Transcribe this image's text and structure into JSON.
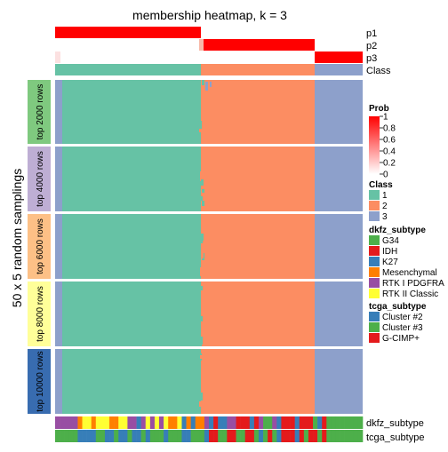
{
  "chart_data": {
    "type": "heatmap",
    "title": "membership heatmap, k = 3",
    "ylabel": "50 x 5 random samplings",
    "column_groups": [
      {
        "class": "1",
        "fraction": 0.455
      },
      {
        "class": "2",
        "fraction": 0.37
      },
      {
        "class": "3",
        "fraction": 0.12
      }
    ],
    "top_annotations": [
      {
        "label": "p1",
        "values_by_group": [
          1.0,
          0.0,
          0.0
        ]
      },
      {
        "label": "p2",
        "values_by_group": [
          0.0,
          1.0,
          0.0
        ]
      },
      {
        "label": "p3",
        "values_by_group": [
          0.0,
          0.0,
          1.0
        ]
      },
      {
        "label": "Class",
        "values_by_group": [
          "1",
          "2",
          "3"
        ]
      }
    ],
    "row_slices": [
      {
        "label": "top 2000 rows",
        "color": "#7FC97F"
      },
      {
        "label": "top 4000 rows",
        "color": "#BEAED4"
      },
      {
        "label": "top 6000 rows",
        "color": "#FDC086"
      },
      {
        "label": "top 8000 rows",
        "color": "#FFFF99"
      },
      {
        "label": "top 10000 rows",
        "color": "#386CB0"
      }
    ],
    "bottom_annotations": [
      {
        "label": "dkfz_subtype"
      },
      {
        "label": "tcga_subtype"
      }
    ]
  },
  "legends": {
    "prob": {
      "title": "Prob",
      "ticks": [
        "1",
        "0.8",
        "0.6",
        "0.4",
        "0.2",
        "0"
      ]
    },
    "class": {
      "title": "Class",
      "entries": [
        {
          "label": "1",
          "color": "#66C2A5"
        },
        {
          "label": "2",
          "color": "#FC8D62"
        },
        {
          "label": "3",
          "color": "#8DA0CB"
        }
      ]
    },
    "dkfz": {
      "title": "dkfz_subtype",
      "entries": [
        {
          "label": "G34",
          "color": "#4DAF4A"
        },
        {
          "label": "IDH",
          "color": "#E41A1C"
        },
        {
          "label": "K27",
          "color": "#377EB8"
        },
        {
          "label": "Mesenchymal",
          "color": "#FF7F00"
        },
        {
          "label": "RTK I PDGFRA",
          "color": "#984EA3"
        },
        {
          "label": "RTK II Classic",
          "color": "#FFFF33"
        }
      ]
    },
    "tcga": {
      "title": "tcga_subtype",
      "entries": [
        {
          "label": "Cluster #2",
          "color": "#377EB8"
        },
        {
          "label": "Cluster #3",
          "color": "#4DAF4A"
        },
        {
          "label": "G-CIMP+",
          "color": "#E41A1C"
        }
      ]
    }
  },
  "colors": {
    "class1": "#66C2A5",
    "class2": "#FC8D62",
    "class3": "#8DA0CB",
    "prob_high": "#FF0000",
    "prob_low": "#FFFFFF"
  }
}
